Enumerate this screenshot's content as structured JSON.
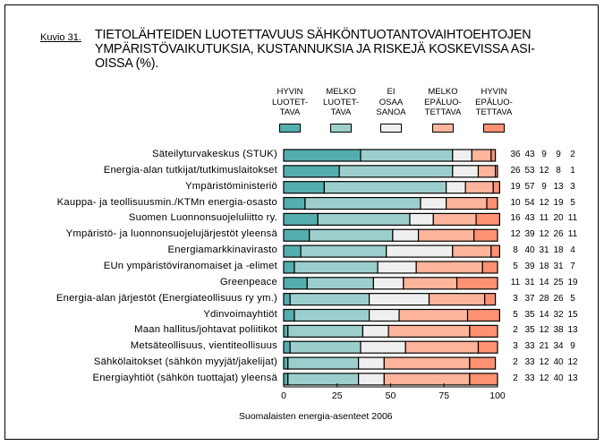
{
  "figure": {
    "label": "Kuvio 31.",
    "title": "TIETOLÄHTEIDEN LUOTETTAVUUS SÄHKÖNTUOTANTOVAIHTOEHTOJEN YMPÄRISTÖVAIKUTUKSIA, KUSTANNUKSIA JA RISKEJÄ KOSKEVISSA ASI-OISSA (%).",
    "source": "Suomalaisten energia-asenteet 2006"
  },
  "chart_data": {
    "type": "bar",
    "orientation": "horizontal",
    "stacked": true,
    "title": "TIETOLÄHTEIDEN LUOTETTAVUUS SÄHKÖNTUOTANTOVAIHTOEHTOJEN YMPÄRISTÖVAIKUTUKSIA, KUSTANNUKSIA JA RISKEJÄ KOSKEVISSA ASIOISSA (%).",
    "xlabel": "",
    "ylabel": "",
    "xlim": [
      0,
      100
    ],
    "xticks": [
      "0",
      "25",
      "50",
      "75",
      "100"
    ],
    "grid": false,
    "legend_position": "top",
    "categories": [
      "Säteilyturvakeskus (STUK)",
      "Energia-alan tutkijat/tutkimuslaitokset",
      "Ympäristöministeriö",
      "Kauppa- ja teollisuusmin./KTMn energia-osasto",
      "Suomen Luonnonsuojeluliitto ry.",
      "Ympäristö- ja luonnonsuojelujärjestöt yleensä",
      "Energiamarkkinavirasto",
      "EUn ympäristöviranomaiset ja -elimet",
      "Greenpeace",
      "Energia-alan järjestöt (Energiateollisuus ry ym.)",
      "Ydinvoimayhtiöt",
      "Maan hallitus/johtavat poliitikot",
      "Metsäteollisuus, vientiteollisuus",
      "Sähkölaitokset (sähkön myyjät/jakelijat)",
      "Energiayhtiöt (sähkön tuottajat) yleensä"
    ],
    "series": [
      {
        "name": "HYVIN LUOTET-TAVA",
        "color": "#55aeae",
        "values": [
          36,
          26,
          19,
          10,
          16,
          12,
          8,
          5,
          11,
          3,
          5,
          2,
          3,
          2,
          2
        ]
      },
      {
        "name": "MELKO LUOTET-TAVA",
        "color": "#9ccecc",
        "values": [
          43,
          53,
          57,
          54,
          43,
          39,
          40,
          39,
          31,
          37,
          35,
          35,
          33,
          33,
          33
        ]
      },
      {
        "name": "EI OSAA SANOA",
        "color": "#efefef",
        "values": [
          9,
          12,
          9,
          12,
          11,
          12,
          31,
          18,
          14,
          28,
          14,
          12,
          21,
          12,
          12
        ]
      },
      {
        "name": "MELKO EPÄLUO-TETTAVA",
        "color": "#ffb49c",
        "values": [
          9,
          8,
          13,
          19,
          20,
          26,
          18,
          31,
          25,
          26,
          32,
          38,
          34,
          40,
          40
        ]
      },
      {
        "name": "HYVIN EPÄLUO-TETTAVA",
        "color": "#ff9173",
        "values": [
          2,
          1,
          3,
          5,
          11,
          11,
          4,
          7,
          19,
          5,
          15,
          13,
          9,
          12,
          13
        ]
      }
    ]
  },
  "legend": [
    {
      "lines": [
        "HYVIN",
        "LUOTET-",
        "TAVA"
      ]
    },
    {
      "lines": [
        "MELKO",
        "LUOTET-",
        "TAVA"
      ]
    },
    {
      "lines": [
        "EI",
        "OSAA",
        "SANOA"
      ]
    },
    {
      "lines": [
        "MELKO",
        "EPÄLUO-",
        "TETTAVA"
      ]
    },
    {
      "lines": [
        "HYVIN",
        "EPÄLUO-",
        "TETTAVA"
      ]
    }
  ]
}
